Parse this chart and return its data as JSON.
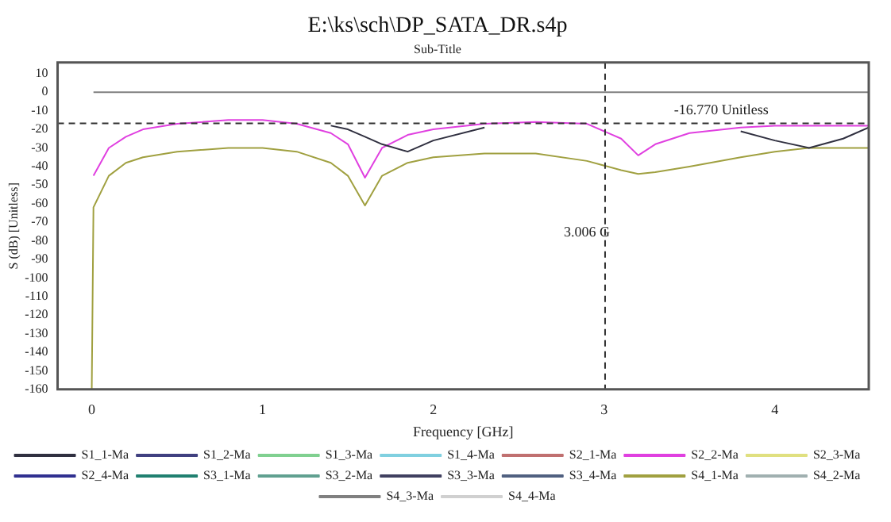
{
  "chart_data": {
    "type": "line",
    "title": "E:\\ks\\sch\\DP_SATA_DR.s4p",
    "subtitle": "Sub-Title",
    "xlabel": "Frequency [GHz]",
    "ylabel": "S (dB) [Unitless]",
    "x": [
      0,
      0.01,
      0.1,
      0.2,
      0.3,
      0.5,
      0.8,
      1.0,
      1.2,
      1.4,
      1.5,
      1.6,
      1.7,
      1.85,
      2.0,
      2.3,
      2.6,
      2.9,
      3.1,
      3.2,
      3.3,
      3.5,
      3.8,
      4.0,
      4.2,
      4.4,
      4.55
    ],
    "xlim": [
      -0.2,
      4.55
    ],
    "xticks": [
      0,
      1,
      2,
      3,
      4
    ],
    "ylim": [
      -160,
      16
    ],
    "yticks": [
      10,
      0,
      -10,
      -20,
      -30,
      -40,
      -50,
      -60,
      -70,
      -80,
      -90,
      -100,
      -110,
      -120,
      -130,
      -140,
      -150,
      -160
    ],
    "grid": false,
    "legend": "bottom",
    "marker": "none",
    "line_style": "solid",
    "ref_lines": [
      {
        "axis": "y",
        "value": -16.77,
        "label": "-16.770 Unitless",
        "line_style": "dashed",
        "color": "#303030"
      },
      {
        "axis": "x",
        "value": 3.006,
        "label": "3.006 G",
        "line_style": "dashed",
        "color": "#303030"
      }
    ],
    "series": [
      {
        "name": "S1_1-Ma",
        "color": "#303040",
        "values": [
          null,
          null,
          null,
          null,
          null,
          null,
          null,
          null,
          null,
          -18,
          -20,
          -24,
          -28,
          -32,
          -26,
          -19,
          null,
          null,
          null,
          null,
          null,
          null,
          -21,
          -26,
          -30,
          -25,
          -19
        ]
      },
      {
        "name": "S1_2-Ma",
        "color": "#404080",
        "values": [
          null,
          null,
          null,
          null,
          null,
          null,
          null,
          null,
          null,
          null,
          null,
          null,
          null,
          null,
          null,
          null,
          null,
          null,
          null,
          null,
          null,
          null,
          null,
          null,
          null,
          null,
          null
        ]
      },
      {
        "name": "S1_3-Ma",
        "color": "#80d090",
        "values": [
          null,
          null,
          null,
          null,
          null,
          null,
          null,
          null,
          null,
          null,
          null,
          null,
          null,
          null,
          null,
          null,
          null,
          null,
          null,
          null,
          null,
          null,
          null,
          null,
          null,
          null,
          null
        ]
      },
      {
        "name": "S1_4-Ma",
        "color": "#80d0e0",
        "values": [
          null,
          null,
          null,
          null,
          null,
          null,
          null,
          null,
          null,
          null,
          null,
          null,
          null,
          null,
          null,
          null,
          null,
          null,
          null,
          null,
          null,
          null,
          null,
          null,
          null,
          null,
          null
        ]
      },
      {
        "name": "S2_1-Ma",
        "color": "#c07070",
        "values": [
          null,
          null,
          null,
          null,
          null,
          null,
          null,
          null,
          null,
          null,
          null,
          null,
          null,
          null,
          null,
          null,
          null,
          null,
          null,
          null,
          null,
          null,
          null,
          null,
          null,
          null,
          null
        ]
      },
      {
        "name": "S2_2-Ma",
        "color": "#e040e0",
        "values": [
          null,
          -45,
          -30,
          -24,
          -20,
          -17,
          -15,
          -15,
          -17,
          -22,
          -28,
          -46,
          -30,
          -23,
          -20,
          -17,
          -16,
          -17,
          -25,
          -34,
          -28,
          -22,
          -19,
          -18,
          -18,
          -18,
          -18
        ]
      },
      {
        "name": "S2_3-Ma",
        "color": "#e0e080",
        "values": [
          null,
          null,
          null,
          null,
          null,
          null,
          null,
          null,
          null,
          null,
          null,
          null,
          null,
          null,
          null,
          null,
          null,
          null,
          null,
          null,
          null,
          null,
          null,
          null,
          null,
          null,
          null
        ]
      },
      {
        "name": "S2_4-Ma",
        "color": "#303090",
        "values": [
          null,
          null,
          null,
          null,
          null,
          null,
          null,
          null,
          null,
          null,
          null,
          null,
          null,
          null,
          null,
          null,
          null,
          null,
          null,
          null,
          null,
          null,
          null,
          null,
          null,
          null,
          null
        ]
      },
      {
        "name": "S3_1-Ma",
        "color": "#208070",
        "values": [
          null,
          null,
          null,
          null,
          null,
          null,
          null,
          null,
          null,
          null,
          null,
          null,
          null,
          null,
          null,
          null,
          null,
          null,
          null,
          null,
          null,
          null,
          null,
          null,
          null,
          null,
          null
        ]
      },
      {
        "name": "S3_2-Ma",
        "color": "#60a090",
        "values": [
          null,
          null,
          null,
          null,
          null,
          null,
          null,
          null,
          null,
          null,
          null,
          null,
          null,
          null,
          null,
          null,
          null,
          null,
          null,
          null,
          null,
          null,
          null,
          null,
          null,
          null,
          null
        ]
      },
      {
        "name": "S3_3-Ma",
        "color": "#404060",
        "values": [
          null,
          null,
          null,
          null,
          null,
          null,
          null,
          null,
          null,
          null,
          null,
          null,
          null,
          null,
          null,
          null,
          null,
          null,
          null,
          null,
          null,
          null,
          null,
          null,
          null,
          null,
          null
        ]
      },
      {
        "name": "S3_4-Ma",
        "color": "#506080",
        "values": [
          null,
          null,
          null,
          null,
          null,
          null,
          null,
          null,
          null,
          null,
          null,
          null,
          null,
          null,
          null,
          null,
          null,
          null,
          null,
          null,
          null,
          null,
          null,
          null,
          null,
          null,
          null
        ]
      },
      {
        "name": "S4_1-Ma",
        "color": "#a0a040",
        "values": [
          -160,
          -62,
          -45,
          -38,
          -35,
          -32,
          -30,
          -30,
          -32,
          -38,
          -45,
          -61,
          -45,
          -38,
          -35,
          -33,
          -33,
          -37,
          -42,
          -44,
          -43,
          -40,
          -35,
          -32,
          -30,
          -30,
          -30
        ]
      },
      {
        "name": "S4_2-Ma",
        "color": "#a0b0b0",
        "values": [
          null,
          null,
          null,
          null,
          null,
          null,
          null,
          null,
          null,
          null,
          null,
          null,
          null,
          null,
          null,
          null,
          null,
          null,
          null,
          null,
          null,
          null,
          null,
          null,
          null,
          null,
          null
        ]
      },
      {
        "name": "S4_3-Ma",
        "color": "#808080",
        "values": [
          null,
          0,
          0,
          0,
          0,
          0,
          0,
          0,
          0,
          0,
          0,
          0,
          0,
          0,
          0,
          0,
          0,
          0,
          0,
          0,
          0,
          0,
          0,
          0,
          0,
          0,
          0
        ]
      },
      {
        "name": "S4_4-Ma",
        "color": "#d0d0d0",
        "values": [
          null,
          null,
          null,
          null,
          null,
          null,
          null,
          null,
          null,
          null,
          null,
          null,
          null,
          null,
          null,
          null,
          null,
          null,
          null,
          null,
          null,
          null,
          null,
          null,
          null,
          null,
          null
        ]
      }
    ]
  }
}
